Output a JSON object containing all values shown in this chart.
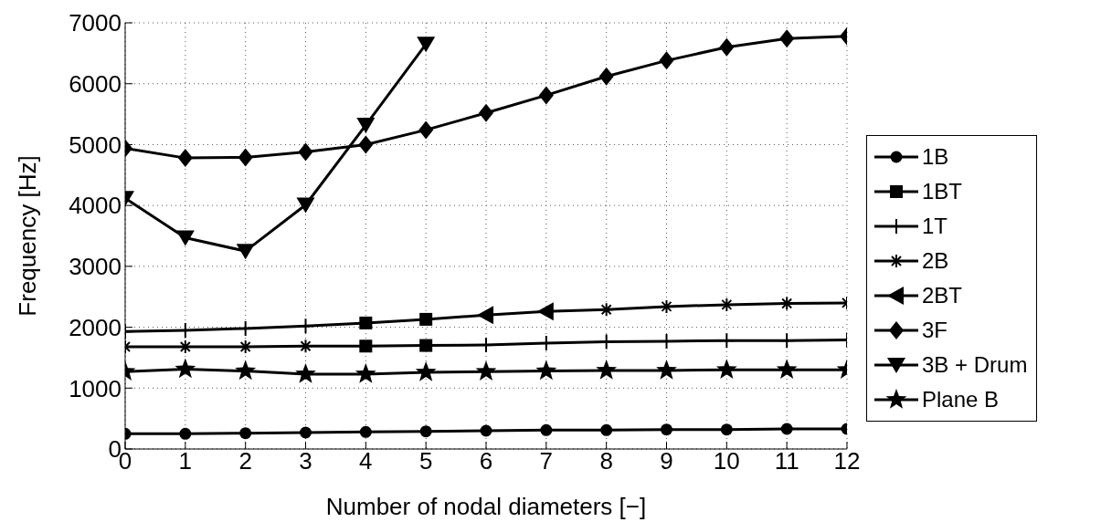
{
  "chart_data": {
    "type": "line",
    "xlabel": "Number of nodal diameters [−]",
    "ylabel": "Frequency [Hz]",
    "xlim": [
      0,
      12
    ],
    "xticks": [
      0,
      1,
      2,
      3,
      4,
      5,
      6,
      7,
      8,
      9,
      10,
      11,
      12
    ],
    "ylim": [
      0,
      7000
    ],
    "yticks": [
      0,
      1000,
      2000,
      3000,
      4000,
      5000,
      6000,
      7000
    ],
    "grid": true,
    "legend": "right",
    "line_style": "solid",
    "series": [
      {
        "name": "1B",
        "marker": "circle",
        "color": "#000000",
        "x": [
          0,
          1,
          2,
          3,
          4,
          5,
          6,
          7,
          8,
          9,
          10,
          11,
          12
        ],
        "values": [
          250,
          250,
          260,
          270,
          280,
          290,
          300,
          310,
          310,
          320,
          320,
          330,
          330
        ]
      },
      {
        "name": "1BT",
        "type": "scatter",
        "marker": "square",
        "color": "#000000",
        "x": [
          4,
          5,
          4,
          5
        ],
        "values": [
          2070,
          2130,
          1690,
          1700
        ]
      },
      {
        "name": "1T",
        "type": "scatter",
        "marker": "plus",
        "color": "#000000",
        "x": [
          0,
          1,
          2,
          3,
          6,
          7,
          8,
          9,
          10,
          11,
          12
        ],
        "values": [
          1930,
          1950,
          1980,
          2020,
          1710,
          1740,
          1760,
          1770,
          1780,
          1780,
          1790
        ]
      },
      {
        "name": "2B",
        "type": "scatter",
        "marker": "cross",
        "color": "#000000",
        "x": [
          0,
          1,
          2,
          3,
          8,
          9,
          10,
          11,
          12
        ],
        "values": [
          1680,
          1680,
          1680,
          1690,
          2290,
          2340,
          2370,
          2390,
          2400
        ]
      },
      {
        "name": "2BT",
        "type": "scatter",
        "marker": "triangle-left",
        "color": "#000000",
        "x": [
          6,
          7
        ],
        "values": [
          2200,
          2260
        ]
      },
      {
        "name": "3F",
        "marker": "diamond",
        "color": "#000000",
        "x": [
          0,
          1,
          2,
          3,
          4,
          5,
          6,
          7,
          8,
          9,
          10,
          11,
          12
        ],
        "values": [
          4940,
          4780,
          4790,
          4880,
          5000,
          5240,
          5520,
          5810,
          6120,
          6380,
          6600,
          6740,
          6780
        ]
      },
      {
        "name": "3B + Drum",
        "marker": "triangle-down",
        "color": "#000000",
        "x": [
          0,
          1,
          2,
          3,
          4,
          5
        ],
        "values": [
          4120,
          3470,
          3250,
          4010,
          5320,
          6650
        ]
      },
      {
        "name": "Plane B",
        "marker": "star",
        "color": "#000000",
        "x": [
          0,
          1,
          2,
          3,
          4,
          5,
          6,
          7,
          8,
          9,
          10,
          11,
          12
        ],
        "values": [
          1270,
          1310,
          1280,
          1230,
          1230,
          1260,
          1270,
          1280,
          1290,
          1290,
          1300,
          1300,
          1300
        ]
      },
      {
        "marker": "none",
        "color": "#000000",
        "x": [
          0,
          1,
          2,
          3,
          4,
          5,
          6,
          7,
          8,
          9,
          10,
          11,
          12
        ],
        "values": [
          1930,
          1950,
          1980,
          2020,
          2070,
          2130,
          2200,
          2260,
          2290,
          2340,
          2370,
          2390,
          2400
        ]
      },
      {
        "marker": "none",
        "color": "#000000",
        "x": [
          0,
          1,
          2,
          3,
          4,
          5,
          6,
          7,
          8,
          9,
          10,
          11,
          12
        ],
        "values": [
          1680,
          1680,
          1680,
          1690,
          1690,
          1700,
          1710,
          1740,
          1760,
          1770,
          1780,
          1780,
          1790
        ]
      }
    ]
  }
}
